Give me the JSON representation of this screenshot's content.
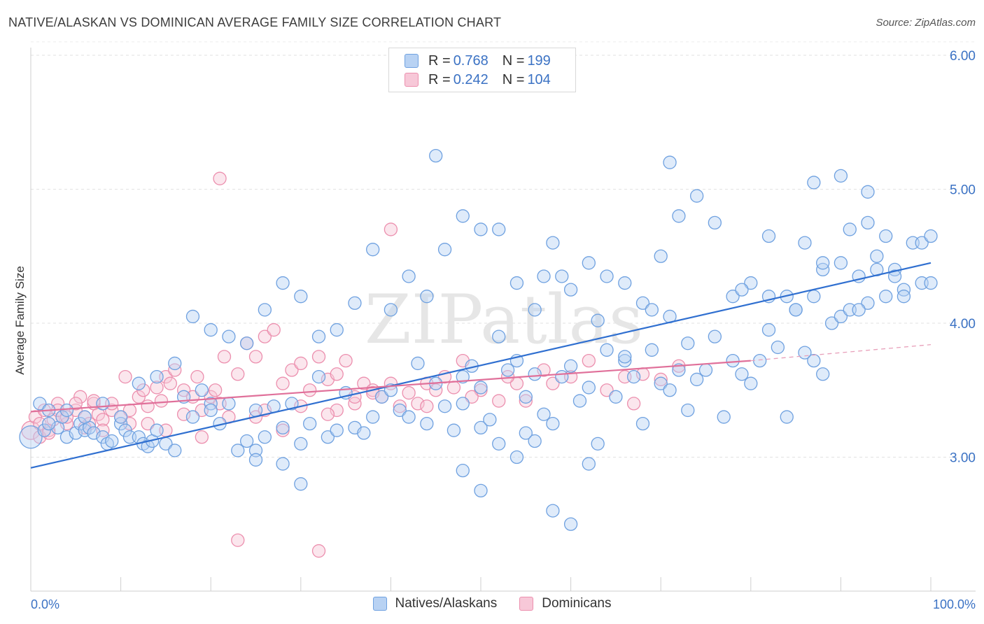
{
  "chart_data": {
    "type": "scatter",
    "title": "NATIVE/ALASKAN VS DOMINICAN AVERAGE FAMILY SIZE CORRELATION CHART",
    "source": "Source: ZipAtlas.com",
    "xlabel": "",
    "ylabel": "Average Family Size",
    "xlim": [
      0,
      100
    ],
    "ylim": [
      2.0,
      6.1
    ],
    "x_tick_labels": [
      "0.0%",
      "100.0%"
    ],
    "y_ticks": [
      3.0,
      4.0,
      5.0,
      6.0
    ],
    "y_tick_labels": [
      "3.00",
      "4.00",
      "5.00",
      "6.00"
    ],
    "grid": true,
    "watermark": "ZIPatlas",
    "legend": [
      {
        "r_label": "R =",
        "r_value": "0.768",
        "n_label": "N =",
        "n_value": "199"
      },
      {
        "r_label": "R =",
        "r_value": "0.242",
        "n_label": "N =",
        "n_value": "104"
      }
    ],
    "series": [
      {
        "name": "Natives/Alaskans",
        "color": "#6fa1e0",
        "fill": "#b8d2f3",
        "trend": {
          "x": [
            0,
            100
          ],
          "y": [
            2.92,
            4.45
          ]
        },
        "points": [
          [
            0,
            3.15
          ],
          [
            1,
            3.4
          ],
          [
            1.5,
            3.2
          ],
          [
            2,
            3.35
          ],
          [
            3,
            3.22
          ],
          [
            3.5,
            3.3
          ],
          [
            4,
            3.15
          ],
          [
            5,
            3.18
          ],
          [
            5.5,
            3.25
          ],
          [
            6,
            3.2
          ],
          [
            6.5,
            3.22
          ],
          [
            7,
            3.18
          ],
          [
            8,
            3.15
          ],
          [
            8.5,
            3.1
          ],
          [
            9,
            3.12
          ],
          [
            10,
            3.25
          ],
          [
            10.5,
            3.2
          ],
          [
            11,
            3.15
          ],
          [
            12,
            3.15
          ],
          [
            12.5,
            3.1
          ],
          [
            13,
            3.08
          ],
          [
            13.5,
            3.12
          ],
          [
            14,
            3.2
          ],
          [
            15,
            3.1
          ],
          [
            16,
            3.05
          ],
          [
            17,
            3.45
          ],
          [
            18,
            3.3
          ],
          [
            19,
            3.5
          ],
          [
            20,
            3.4
          ],
          [
            20,
            3.35
          ],
          [
            21,
            3.25
          ],
          [
            22,
            3.4
          ],
          [
            23,
            3.05
          ],
          [
            24,
            3.12
          ],
          [
            25,
            3.05
          ],
          [
            25,
            3.35
          ],
          [
            26,
            3.15
          ],
          [
            27,
            3.38
          ],
          [
            28,
            3.22
          ],
          [
            29,
            3.4
          ],
          [
            30,
            3.1
          ],
          [
            31,
            3.25
          ],
          [
            32,
            3.6
          ],
          [
            33,
            3.15
          ],
          [
            34,
            3.2
          ],
          [
            35,
            3.48
          ],
          [
            36,
            3.22
          ],
          [
            37,
            3.18
          ],
          [
            38,
            3.3
          ],
          [
            39,
            3.45
          ],
          [
            40,
            3.5
          ],
          [
            41,
            3.35
          ],
          [
            42,
            3.3
          ],
          [
            43,
            3.7
          ],
          [
            44,
            3.25
          ],
          [
            45,
            3.55
          ],
          [
            46,
            3.38
          ],
          [
            47,
            3.2
          ],
          [
            48,
            3.6
          ],
          [
            48,
            3.4
          ],
          [
            49,
            3.68
          ],
          [
            50,
            3.52
          ],
          [
            50,
            3.22
          ],
          [
            51,
            3.28
          ],
          [
            52,
            3.9
          ],
          [
            53,
            3.65
          ],
          [
            54,
            3.72
          ],
          [
            55,
            3.45
          ],
          [
            55,
            3.18
          ],
          [
            56,
            3.62
          ],
          [
            57,
            3.32
          ],
          [
            58,
            3.25
          ],
          [
            59,
            3.6
          ],
          [
            60,
            3.68
          ],
          [
            61,
            3.42
          ],
          [
            62,
            3.52
          ],
          [
            63,
            3.1
          ],
          [
            64,
            3.8
          ],
          [
            65,
            3.45
          ],
          [
            66,
            3.72
          ],
          [
            67,
            3.6
          ],
          [
            68,
            3.25
          ],
          [
            69,
            3.8
          ],
          [
            70,
            3.55
          ],
          [
            71,
            3.5
          ],
          [
            72,
            3.65
          ],
          [
            73,
            3.35
          ],
          [
            74,
            3.58
          ],
          [
            75,
            3.65
          ],
          [
            76,
            3.9
          ],
          [
            77,
            3.3
          ],
          [
            78,
            3.72
          ],
          [
            79,
            3.62
          ],
          [
            80,
            3.55
          ],
          [
            81,
            3.72
          ],
          [
            82,
            3.95
          ],
          [
            83,
            3.82
          ],
          [
            84,
            3.3
          ],
          [
            85,
            4.1
          ],
          [
            86,
            3.78
          ],
          [
            87,
            3.72
          ],
          [
            87,
            4.2
          ],
          [
            88,
            3.62
          ],
          [
            89,
            4.0
          ],
          [
            90,
            4.05
          ],
          [
            91,
            4.1
          ],
          [
            92,
            4.35
          ],
          [
            93,
            4.15
          ],
          [
            94,
            4.5
          ],
          [
            95,
            4.2
          ],
          [
            96,
            4.4
          ],
          [
            97,
            4.25
          ],
          [
            98,
            4.6
          ],
          [
            99,
            4.3
          ],
          [
            100,
            4.3
          ],
          [
            96,
            4.35
          ],
          [
            94,
            4.4
          ],
          [
            92,
            4.1
          ],
          [
            90,
            4.45
          ],
          [
            88,
            4.4
          ],
          [
            86,
            4.6
          ],
          [
            84,
            4.2
          ],
          [
            82,
            4.65
          ],
          [
            80,
            4.3
          ],
          [
            78,
            4.2
          ],
          [
            76,
            4.75
          ],
          [
            74,
            4.95
          ],
          [
            72,
            4.8
          ],
          [
            70,
            4.5
          ],
          [
            68,
            4.15
          ],
          [
            66,
            4.3
          ],
          [
            64,
            4.35
          ],
          [
            62,
            4.45
          ],
          [
            60,
            4.25
          ],
          [
            58,
            4.6
          ],
          [
            56,
            4.1
          ],
          [
            54,
            4.3
          ],
          [
            52,
            4.7
          ],
          [
            50,
            4.7
          ],
          [
            48,
            4.8
          ],
          [
            46,
            4.55
          ],
          [
            44,
            4.2
          ],
          [
            42,
            4.35
          ],
          [
            40,
            4.1
          ],
          [
            38,
            4.55
          ],
          [
            36,
            4.15
          ],
          [
            34,
            3.95
          ],
          [
            32,
            3.9
          ],
          [
            30,
            4.2
          ],
          [
            28,
            4.3
          ],
          [
            26,
            4.1
          ],
          [
            24,
            3.85
          ],
          [
            22,
            3.9
          ],
          [
            20,
            3.95
          ],
          [
            18,
            4.05
          ],
          [
            16,
            3.7
          ],
          [
            14,
            3.6
          ],
          [
            12,
            3.55
          ],
          [
            10,
            3.3
          ],
          [
            8,
            3.4
          ],
          [
            6,
            3.3
          ],
          [
            4,
            3.35
          ],
          [
            2,
            3.25
          ],
          [
            57,
            4.35
          ],
          [
            59,
            4.35
          ],
          [
            63,
            4.02
          ],
          [
            66,
            3.75
          ],
          [
            69,
            4.1
          ],
          [
            71,
            4.05
          ],
          [
            73,
            3.85
          ],
          [
            79,
            4.25
          ],
          [
            82,
            4.2
          ],
          [
            85,
            4.1
          ],
          [
            88,
            4.45
          ],
          [
            91,
            4.7
          ],
          [
            93,
            4.75
          ],
          [
            95,
            4.65
          ],
          [
            97,
            4.2
          ],
          [
            99,
            4.6
          ],
          [
            100,
            4.65
          ],
          [
            48,
            2.9
          ],
          [
            50,
            2.75
          ],
          [
            52,
            3.1
          ],
          [
            54,
            3.0
          ],
          [
            56,
            3.12
          ],
          [
            58,
            2.6
          ],
          [
            60,
            2.5
          ],
          [
            62,
            2.95
          ],
          [
            30,
            2.8
          ],
          [
            28,
            2.95
          ],
          [
            25,
            2.98
          ],
          [
            45,
            5.25
          ],
          [
            71,
            5.2
          ],
          [
            87,
            5.05
          ],
          [
            90,
            5.1
          ],
          [
            93,
            4.98
          ]
        ]
      },
      {
        "name": "Dominicans",
        "color": "#ec8fae",
        "fill": "#f7c8d8",
        "trend": {
          "x": [
            0,
            80
          ],
          "y": [
            3.34,
            3.72
          ]
        },
        "trend_ext": {
          "x": [
            80,
            100
          ],
          "y": [
            3.72,
            3.84
          ]
        },
        "points": [
          [
            0,
            3.2
          ],
          [
            0.5,
            3.3
          ],
          [
            1,
            3.25
          ],
          [
            1.5,
            3.35
          ],
          [
            2,
            3.2
          ],
          [
            2.5,
            3.28
          ],
          [
            3,
            3.4
          ],
          [
            3.5,
            3.3
          ],
          [
            4,
            3.25
          ],
          [
            5,
            3.35
          ],
          [
            5.5,
            3.45
          ],
          [
            6,
            3.3
          ],
          [
            6.5,
            3.25
          ],
          [
            7,
            3.4
          ],
          [
            7.5,
            3.32
          ],
          [
            8,
            3.28
          ],
          [
            9,
            3.35
          ],
          [
            10,
            3.3
          ],
          [
            10.5,
            3.6
          ],
          [
            11,
            3.25
          ],
          [
            12,
            3.45
          ],
          [
            12.5,
            3.5
          ],
          [
            13,
            3.38
          ],
          [
            14,
            3.52
          ],
          [
            14.5,
            3.42
          ],
          [
            15,
            3.6
          ],
          [
            15.5,
            3.55
          ],
          [
            16,
            3.65
          ],
          [
            17,
            3.5
          ],
          [
            18,
            3.45
          ],
          [
            18.5,
            3.6
          ],
          [
            19,
            3.35
          ],
          [
            20,
            3.45
          ],
          [
            20.5,
            3.5
          ],
          [
            21,
            3.4
          ],
          [
            21.5,
            3.75
          ],
          [
            22,
            3.3
          ],
          [
            23,
            3.62
          ],
          [
            24,
            3.85
          ],
          [
            25,
            3.75
          ],
          [
            26,
            3.9
          ],
          [
            27,
            3.95
          ],
          [
            28,
            3.55
          ],
          [
            29,
            3.65
          ],
          [
            30,
            3.7
          ],
          [
            31,
            3.5
          ],
          [
            32,
            3.75
          ],
          [
            33,
            3.58
          ],
          [
            34,
            3.62
          ],
          [
            35,
            3.72
          ],
          [
            36,
            3.4
          ],
          [
            37,
            3.55
          ],
          [
            38,
            3.5
          ],
          [
            39,
            3.45
          ],
          [
            40,
            3.55
          ],
          [
            41,
            3.38
          ],
          [
            43,
            3.4
          ],
          [
            44,
            3.55
          ],
          [
            45,
            3.5
          ],
          [
            46,
            3.6
          ],
          [
            48,
            3.72
          ],
          [
            50,
            3.5
          ],
          [
            52,
            3.42
          ],
          [
            54,
            3.55
          ],
          [
            57,
            3.65
          ],
          [
            60,
            3.6
          ],
          [
            62,
            3.72
          ],
          [
            66,
            3.6
          ],
          [
            68,
            3.62
          ],
          [
            72,
            3.68
          ],
          [
            21,
            5.08
          ],
          [
            40,
            4.7
          ],
          [
            23,
            2.38
          ],
          [
            32,
            2.3
          ],
          [
            28,
            3.2
          ],
          [
            25,
            3.3
          ],
          [
            19,
            3.15
          ],
          [
            17,
            3.32
          ],
          [
            15,
            3.2
          ],
          [
            13,
            3.25
          ],
          [
            11,
            3.35
          ],
          [
            9,
            3.4
          ],
          [
            7,
            3.42
          ],
          [
            5,
            3.4
          ],
          [
            3,
            3.35
          ],
          [
            1,
            3.15
          ],
          [
            34,
            3.35
          ],
          [
            36,
            3.45
          ],
          [
            38,
            3.48
          ],
          [
            42,
            3.48
          ],
          [
            44,
            3.38
          ],
          [
            47,
            3.52
          ],
          [
            49,
            3.45
          ],
          [
            53,
            3.6
          ],
          [
            55,
            3.42
          ],
          [
            58,
            3.55
          ],
          [
            64,
            3.5
          ],
          [
            70,
            3.58
          ],
          [
            8,
            3.2
          ],
          [
            6,
            3.22
          ],
          [
            4,
            3.3
          ],
          [
            2,
            3.18
          ],
          [
            26,
            3.35
          ],
          [
            30,
            3.38
          ],
          [
            33,
            3.32
          ],
          [
            67,
            3.4
          ]
        ]
      }
    ]
  }
}
